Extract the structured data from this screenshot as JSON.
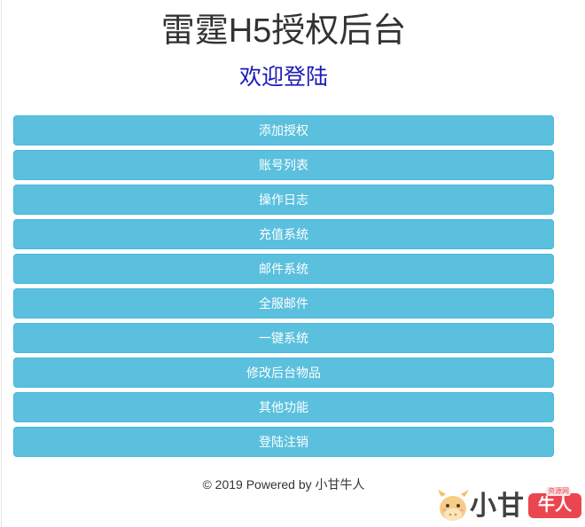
{
  "header": {
    "title": "雷霆H5授权后台",
    "subtitle": "欢迎登陆"
  },
  "menu": {
    "items": [
      {
        "label": "添加授权"
      },
      {
        "label": "账号列表"
      },
      {
        "label": "操作日志"
      },
      {
        "label": "充值系统"
      },
      {
        "label": "邮件系统"
      },
      {
        "label": "全服邮件"
      },
      {
        "label": "一键系统"
      },
      {
        "label": "修改后台物品"
      },
      {
        "label": "其他功能"
      },
      {
        "label": "登陆注销"
      }
    ]
  },
  "footer": {
    "text": "© 2019 Powered by 小甘牛人"
  },
  "watermark": {
    "text_main": "小甘",
    "badge": "牛人",
    "tag": "资源网"
  },
  "colors": {
    "button_bg": "#5bc0de",
    "button_border": "#46b8da",
    "subtitle": "#1a1ab8"
  }
}
